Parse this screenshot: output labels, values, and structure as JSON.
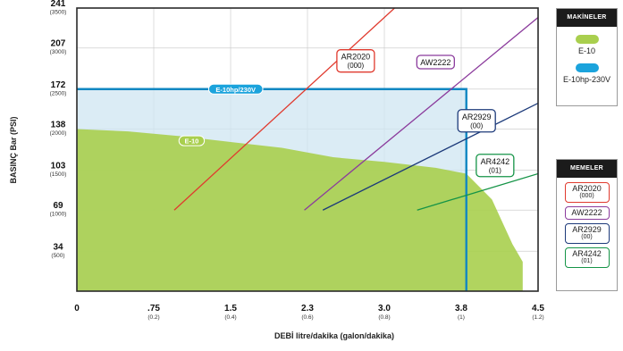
{
  "chart_data": {
    "type": "line",
    "xlabel": "DEBİ litre/dakika (galon/dakika)",
    "ylabel": "BASINÇ Bar (PSI)",
    "xlim": [
      0,
      4.5
    ],
    "ylim": [
      0,
      241
    ],
    "x_ticks": [
      {
        "value": 0,
        "label": "0",
        "sub": ""
      },
      {
        "value": 0.75,
        "label": ".75",
        "sub": "(0.2)"
      },
      {
        "value": 1.5,
        "label": "1.5",
        "sub": "(0.4)"
      },
      {
        "value": 2.25,
        "label": "2.3",
        "sub": "(0.6)"
      },
      {
        "value": 3.0,
        "label": "3.0",
        "sub": "(0.8)"
      },
      {
        "value": 3.75,
        "label": "3.8",
        "sub": "(1)"
      },
      {
        "value": 4.5,
        "label": "4.5",
        "sub": "(1.2)"
      }
    ],
    "y_ticks": [
      {
        "value": 34,
        "label": "34",
        "sub": "(500)"
      },
      {
        "value": 69,
        "label": "69",
        "sub": "(1000)"
      },
      {
        "value": 103,
        "label": "103",
        "sub": "(1500)"
      },
      {
        "value": 138,
        "label": "138",
        "sub": "(2000)"
      },
      {
        "value": 172,
        "label": "172",
        "sub": "(2500)"
      },
      {
        "value": 207,
        "label": "207",
        "sub": "(3000)"
      },
      {
        "value": 241,
        "label": "241",
        "sub": "(3500)"
      }
    ],
    "grid": true,
    "areas": [
      {
        "name": "E-10",
        "color": "#a9cf4e",
        "x": [
          0,
          0.5,
          1.0,
          1.5,
          2.0,
          2.5,
          3.0,
          3.5,
          3.8,
          4.05,
          4.25,
          4.35,
          4.35
        ],
        "y": [
          138,
          136,
          132,
          127,
          122,
          114,
          110,
          105,
          100,
          78,
          40,
          25,
          0
        ]
      },
      {
        "name": "E-10hp/230V",
        "color": "#cfe6f2",
        "stroke": "#1187c2",
        "x": [
          0,
          3.8,
          3.8
        ],
        "y": [
          172,
          172,
          0
        ]
      }
    ],
    "series": [
      {
        "name": "AR2020",
        "sub": "(000)",
        "color": "#e03a2e",
        "x": [
          0.95,
          3.1
        ],
        "y": [
          69,
          241
        ]
      },
      {
        "name": "AW2222",
        "sub": "",
        "color": "#8b3b9c",
        "x": [
          2.22,
          4.5
        ],
        "y": [
          69,
          233
        ]
      },
      {
        "name": "AR2929",
        "sub": "(00)",
        "color": "#1c3a7a",
        "x": [
          2.4,
          4.5
        ],
        "y": [
          69,
          160
        ]
      },
      {
        "name": "AR4242",
        "sub": "(01)",
        "color": "#159447",
        "x": [
          3.32,
          4.5
        ],
        "y": [
          69,
          100
        ]
      }
    ],
    "annotations": [
      {
        "text": "E-10hp/230V",
        "x": 1.55,
        "y": 172
      },
      {
        "text": "E-10",
        "x": 1.12,
        "y": 128
      }
    ]
  },
  "legend_machines": {
    "title": "MAKİNELER",
    "items": [
      {
        "label": "E-10",
        "color": "#a9cf4e"
      },
      {
        "label": "E-10hp-230V",
        "color": "#1ba3dc"
      }
    ]
  },
  "legend_nozzles": {
    "title": "MEMELER",
    "items": [
      {
        "name": "AR2020",
        "sub": "(000)",
        "color": "#e03a2e"
      },
      {
        "name": "AW2222",
        "sub": "",
        "color": "#8b3b9c"
      },
      {
        "name": "AR2929",
        "sub": "(00)",
        "color": "#1c3a7a"
      },
      {
        "name": "AR4242",
        "sub": "(01)",
        "color": "#159447"
      }
    ]
  }
}
